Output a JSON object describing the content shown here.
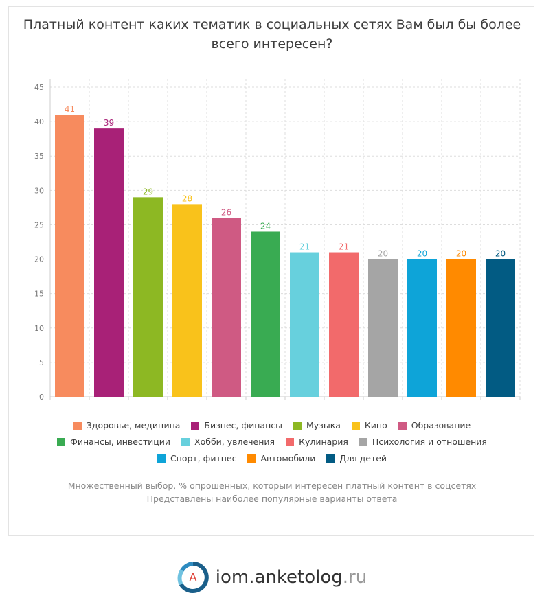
{
  "title": "Платный контент каких тематик в социальных сетях Вам был бы более всего интересен?",
  "chart_data": {
    "type": "bar",
    "categories": [
      "Здоровье, медицина",
      "Бизнес, финансы",
      "Музыка",
      "Кино",
      "Образование",
      "Финансы, инвестиции",
      "Хобби, увлечения",
      "Кулинария",
      "Психология и отношения",
      "Спорт, фитнес",
      "Автомобили",
      "Для детей"
    ],
    "values": [
      41,
      39,
      29,
      28,
      26,
      24,
      21,
      21,
      20,
      20,
      20,
      20
    ],
    "colors": [
      "#f78b5e",
      "#a82177",
      "#8db823",
      "#f9c21b",
      "#cf5a83",
      "#39ab52",
      "#67d0dd",
      "#f26a6b",
      "#a5a5a5",
      "#0ea4d8",
      "#ff8a00",
      "#025b83"
    ],
    "ylim": [
      0,
      45
    ],
    "yticks": [
      "0",
      "5",
      "10",
      "15",
      "20",
      "25",
      "30",
      "35",
      "40",
      "45"
    ],
    "grid": true,
    "legend_position": "bottom"
  },
  "notes": [
    "Множественный выбор, % опрошенных, которым интересен платный контент в соцсетях",
    "Представлены наиболее популярные варианты ответа"
  ],
  "brand": {
    "logo_letter": "A",
    "name": "iom.anketolog",
    "tld": ".ru"
  }
}
